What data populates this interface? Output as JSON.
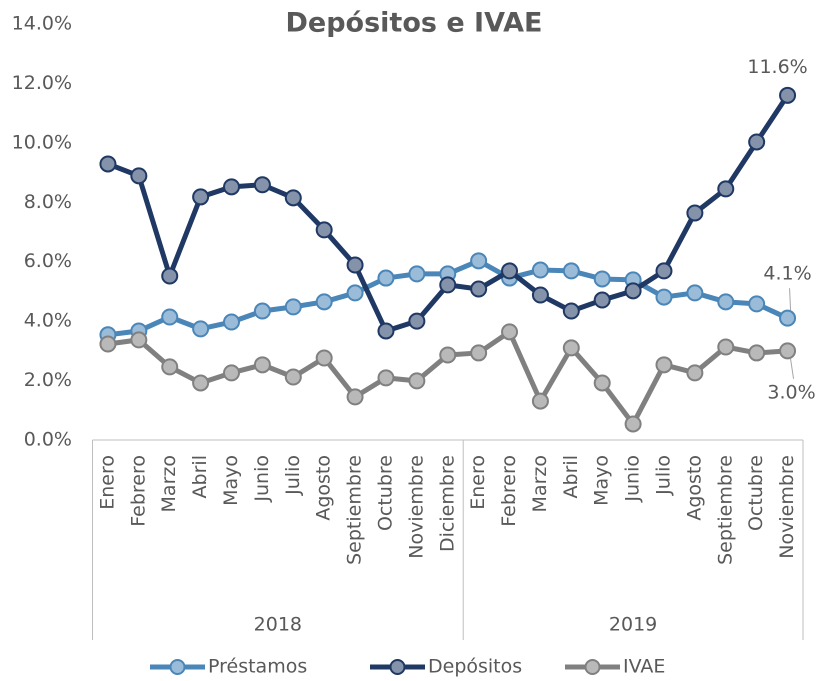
{
  "chart_data": {
    "type": "line",
    "title": "Depósitos e IVAE",
    "categories": [
      "Enero",
      "Febrero",
      "Marzo",
      "Abril",
      "Mayo",
      "Junio",
      "Julio",
      "Agosto",
      "Septiembre",
      "Octubre",
      "Noviembre",
      "Diciembre",
      "Enero",
      "Febrero",
      "Marzo",
      "Abril",
      "Mayo",
      "Junio",
      "Julio",
      "Agosto",
      "Septiembre",
      "Octubre",
      "Noviembre"
    ],
    "x_groups": [
      {
        "label": "2018",
        "size": 12
      },
      {
        "label": "2019",
        "size": 11
      }
    ],
    "series": [
      {
        "name": "Préstamos",
        "color": "#4a86b8",
        "values": [
          3.54,
          3.67,
          4.14,
          3.74,
          3.97,
          4.34,
          4.48,
          4.65,
          4.95,
          5.45,
          5.59,
          5.59,
          6.03,
          5.45,
          5.72,
          5.69,
          5.42,
          5.39,
          4.81,
          4.95,
          4.65,
          4.58,
          4.1
        ],
        "value_labels": [
          null,
          null,
          null,
          null,
          null,
          null,
          null,
          null,
          null,
          null,
          null,
          null,
          null,
          null,
          null,
          null,
          null,
          null,
          null,
          null,
          null,
          null,
          "4.1%"
        ]
      },
      {
        "name": "Depósitos",
        "color": "#1f3864",
        "values": [
          9.29,
          8.89,
          5.52,
          8.18,
          8.52,
          8.59,
          8.15,
          7.07,
          5.89,
          3.67,
          4.0,
          5.22,
          5.08,
          5.69,
          4.88,
          4.34,
          4.71,
          5.02,
          5.69,
          7.64,
          8.45,
          10.03,
          11.6
        ],
        "value_labels": [
          null,
          null,
          null,
          null,
          null,
          null,
          null,
          null,
          null,
          null,
          null,
          null,
          null,
          null,
          null,
          null,
          null,
          null,
          null,
          null,
          null,
          null,
          "11.6%"
        ]
      },
      {
        "name": "IVAE",
        "color": "#808080",
        "values": [
          3.23,
          3.37,
          2.46,
          1.92,
          2.26,
          2.53,
          2.12,
          2.76,
          1.45,
          2.09,
          1.99,
          2.86,
          2.93,
          3.64,
          1.31,
          3.1,
          1.92,
          0.54,
          2.53,
          2.26,
          3.13,
          2.93,
          3.0
        ],
        "value_labels": [
          null,
          null,
          null,
          null,
          null,
          null,
          null,
          null,
          null,
          null,
          null,
          null,
          null,
          null,
          null,
          null,
          null,
          null,
          null,
          null,
          null,
          null,
          "3.0%"
        ]
      }
    ],
    "ylim": [
      0,
      14
    ],
    "yticks": [
      {
        "value": 0,
        "label": "0.0%"
      },
      {
        "value": 2,
        "label": "2.0%"
      },
      {
        "value": 4,
        "label": "4.0%"
      },
      {
        "value": 6,
        "label": "6.0%"
      },
      {
        "value": 8,
        "label": "8.0%"
      },
      {
        "value": 10,
        "label": "10.0%"
      },
      {
        "value": 12,
        "label": "12.0%"
      },
      {
        "value": 14,
        "label": "14.0%"
      }
    ],
    "grid": false,
    "legend": "bottom"
  }
}
